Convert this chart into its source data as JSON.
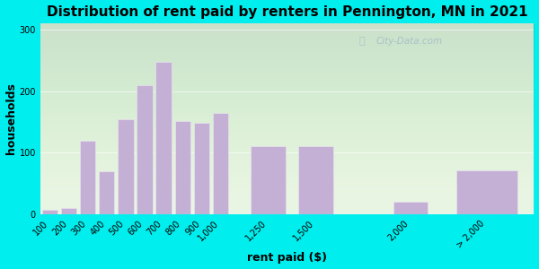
{
  "title": "Distribution of rent paid by renters in Pennington, MN in 2021",
  "xlabel": "rent paid ($)",
  "ylabel": "households",
  "bar_labels": [
    "100",
    "200",
    "300",
    "400",
    "500",
    "600",
    "700",
    "800",
    "900",
    "1,000",
    "1,250",
    "1,500",
    "2,000",
    "> 2,000"
  ],
  "bar_values": [
    8,
    10,
    120,
    70,
    155,
    210,
    248,
    152,
    148,
    165,
    110,
    110,
    20,
    72
  ],
  "bar_color": "#c4b0d5",
  "bar_edge_color": "#e8e0f0",
  "ylim": [
    0,
    310
  ],
  "yticks": [
    0,
    100,
    200,
    300
  ],
  "background_outer": "#00eeee",
  "background_inner": "#e8f5e2",
  "title_fontsize": 11,
  "axis_label_fontsize": 9,
  "tick_fontsize": 7,
  "watermark_text": "City-Data.com",
  "x_positions": [
    100,
    200,
    300,
    400,
    500,
    600,
    700,
    800,
    900,
    1000,
    1250,
    1500,
    2000,
    2400
  ],
  "bar_widths": [
    90,
    90,
    90,
    90,
    90,
    90,
    90,
    90,
    90,
    90,
    200,
    200,
    200,
    350
  ]
}
